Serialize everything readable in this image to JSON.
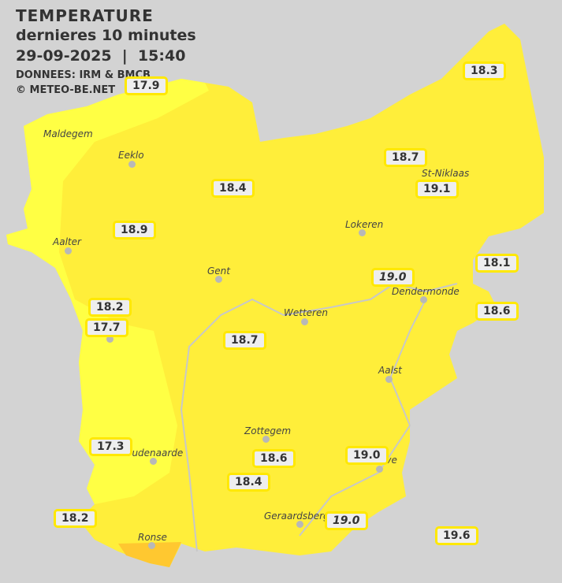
{
  "header": {
    "title": "TEMPERATURE",
    "subtitle": "dernieres 10 minutes",
    "datetime": "29-09-2025  |  15:40",
    "source": "DONNEES: IRM & BMCB",
    "copyright": "© METEO-BE.NET"
  },
  "colors": {
    "background": "#d3d3d3",
    "temp_18": "#ffee3a",
    "temp_17": "#ffff44",
    "temp_20": "#ffc830",
    "label_border": "#ffe800"
  },
  "cities": [
    "Maldegem",
    "Eeklo",
    "St-Niklaas",
    "Lokeren",
    "Aalter",
    "Gent",
    "Dendermonde",
    "Wetteren",
    "e",
    "Aalst",
    "Zottegem",
    "Oudenaarde",
    "ove",
    "Geraardsberg",
    "Ronse"
  ],
  "values": [
    "17.9",
    "18.3",
    "18.7",
    "19.1",
    "18.4",
    "18.9",
    "18.1",
    "19.0",
    "18.2",
    "18.6",
    "17.7",
    "18.7",
    "17.3",
    "18.6",
    "19.0",
    "18.4",
    "18.2",
    "19.0",
    "19.6"
  ]
}
